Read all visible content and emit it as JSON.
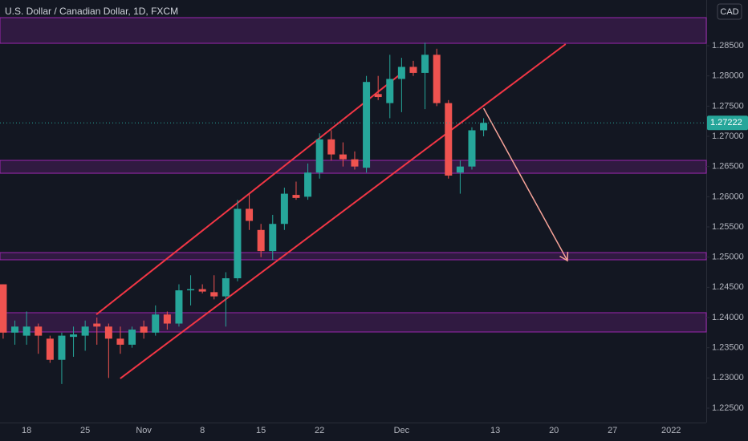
{
  "chart_data": {
    "type": "candlestick",
    "title": "U.S. Dollar / Canadian Dollar, 1D, FXCM",
    "currency": "CAD",
    "categories": [
      null,
      null,
      "18",
      null,
      null,
      null,
      null,
      "25",
      null,
      null,
      null,
      null,
      "Nov",
      null,
      null,
      null,
      null,
      "8",
      null,
      null,
      null,
      null,
      "15",
      null,
      null,
      null,
      null,
      "22",
      null,
      null,
      null,
      null,
      null,
      null,
      "Dec",
      null,
      null,
      null,
      null,
      null,
      null,
      null,
      "13",
      null,
      null,
      null,
      null,
      "20",
      null,
      null,
      null,
      null,
      "27",
      null,
      null,
      null,
      null,
      "2022",
      null,
      null,
      null
    ],
    "open": [
      1.2455,
      1.2375,
      1.237,
      1.2385,
      1.2365,
      1.233,
      1.2368,
      1.237,
      1.239,
      1.2385,
      1.2365,
      1.2355,
      1.2385,
      1.2375,
      1.2405,
      1.239,
      1.2445,
      1.2447,
      1.2442,
      1.2435,
      1.2465,
      1.258,
      1.2545,
      1.251,
      1.2555,
      1.2603,
      1.26,
      1.264,
      1.2695,
      1.267,
      1.2662,
      1.2648,
      1.277,
      1.2755,
      1.2795,
      1.2815,
      1.2805,
      1.2835,
      1.2755,
      1.264,
      1.265,
      1.271,
      null,
      null,
      null,
      null,
      null,
      null,
      null,
      null,
      null,
      null,
      null,
      null,
      null,
      null,
      null,
      null,
      null,
      null,
      null
    ],
    "high": [
      1.2455,
      1.2395,
      1.241,
      1.239,
      1.237,
      1.2375,
      1.2385,
      1.2395,
      1.24,
      1.239,
      1.2385,
      1.2385,
      1.2395,
      1.242,
      1.241,
      1.2455,
      1.247,
      1.2455,
      1.247,
      1.2475,
      1.2595,
      1.2605,
      1.2555,
      1.257,
      1.2615,
      1.2625,
      1.2655,
      1.2705,
      1.271,
      1.269,
      1.2675,
      1.28,
      1.28,
      1.2835,
      1.283,
      1.2825,
      1.2855,
      1.2845,
      1.276,
      1.266,
      1.2715,
      1.273,
      null,
      null,
      null,
      null,
      null,
      null,
      null,
      null,
      null,
      null,
      null,
      null,
      null,
      null,
      null,
      null,
      null,
      null,
      null
    ],
    "low": [
      1.2365,
      1.2355,
      1.2355,
      1.234,
      1.2325,
      1.229,
      1.2335,
      1.2345,
      1.2355,
      1.23,
      1.234,
      1.235,
      1.2365,
      1.237,
      1.238,
      1.2385,
      1.242,
      1.244,
      1.243,
      1.2385,
      1.246,
      1.2545,
      1.25,
      1.2495,
      1.2545,
      1.2595,
      1.2595,
      1.263,
      1.266,
      1.265,
      1.2645,
      1.264,
      1.276,
      1.273,
      1.274,
      1.28,
      1.2745,
      1.275,
      1.263,
      1.2605,
      1.2645,
      1.27,
      null,
      null,
      null,
      null,
      null,
      null,
      null,
      null,
      null,
      null,
      null,
      null,
      null,
      null,
      null,
      null,
      null,
      null,
      null
    ],
    "close": [
      1.2375,
      1.2385,
      1.2385,
      1.237,
      1.233,
      1.237,
      1.2372,
      1.2385,
      1.2385,
      1.2365,
      1.2355,
      1.238,
      1.2375,
      1.2405,
      1.239,
      1.2445,
      1.2447,
      1.2443,
      1.2435,
      1.2465,
      1.258,
      1.256,
      1.251,
      1.2555,
      1.2605,
      1.2598,
      1.264,
      1.2695,
      1.267,
      1.2662,
      1.265,
      1.279,
      1.2765,
      1.2795,
      1.2815,
      1.2805,
      1.2835,
      1.2755,
      1.2635,
      1.265,
      1.271,
      1.27222,
      null,
      null,
      null,
      null,
      null,
      null,
      null,
      null,
      null,
      null,
      null,
      null,
      null,
      null,
      null,
      null,
      null,
      null,
      null
    ],
    "up_color": "#26a69a",
    "down_color": "#ef5350",
    "xlim": [
      -0.27,
      60
    ],
    "ylim": [
      1.22261,
      1.29257
    ],
    "yticks": [
      {
        "value": 1.225,
        "label": "1.22500"
      },
      {
        "value": 1.23,
        "label": "1.23000"
      },
      {
        "value": 1.235,
        "label": "1.23500"
      },
      {
        "value": 1.24,
        "label": "1.24000"
      },
      {
        "value": 1.245,
        "label": "1.24500"
      },
      {
        "value": 1.25,
        "label": "1.25000"
      },
      {
        "value": 1.255,
        "label": "1.25500"
      },
      {
        "value": 1.26,
        "label": "1.26000"
      },
      {
        "value": 1.265,
        "label": "1.26500"
      },
      {
        "value": 1.27,
        "label": "1.27000"
      },
      {
        "value": 1.275,
        "label": "1.27500"
      },
      {
        "value": 1.28,
        "label": "1.28000"
      },
      {
        "value": 1.285,
        "label": "1.28500"
      }
    ],
    "zones": [
      {
        "from": 1.2854,
        "to": 1.28965
      },
      {
        "from": 1.26389,
        "to": 1.26602
      },
      {
        "from": 1.24956,
        "to": 1.25075
      },
      {
        "from": 1.23761,
        "to": 1.2408
      }
    ],
    "zone_color": "#9c27b0",
    "trendlines": [
      {
        "x": [
          7.95,
          33.97
        ],
        "y": [
          1.2405,
          1.2804
        ],
        "color": "#f23645"
      },
      {
        "x": [
          9.99,
          48.0
        ],
        "y": [
          1.2299,
          1.28527
        ],
        "color": "#f23645"
      }
    ],
    "arrow": {
      "x": [
        41,
        48.15
      ],
      "y": [
        1.27465,
        1.24942
      ],
      "color": "#f7a399"
    }
  }
}
